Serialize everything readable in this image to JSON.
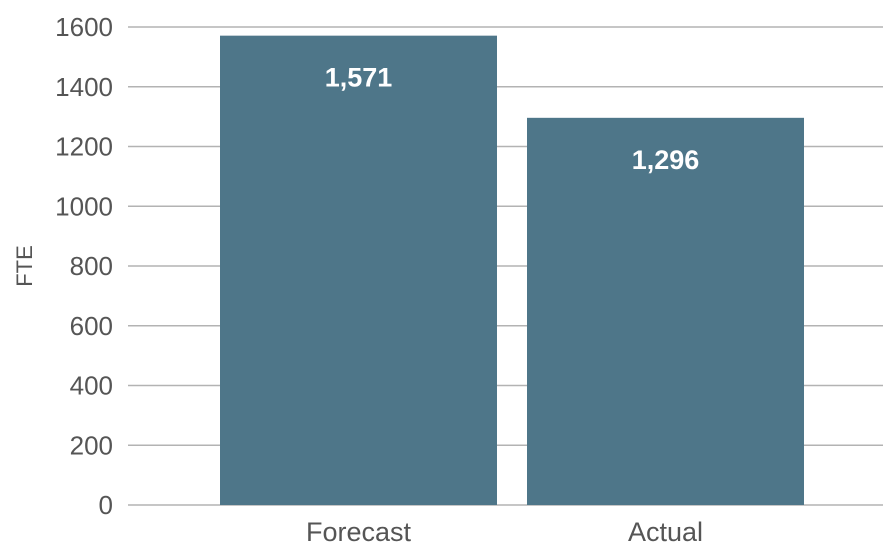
{
  "chart_data": {
    "type": "bar",
    "categories": [
      "Forecast",
      "Actual"
    ],
    "values": [
      1571,
      1296
    ],
    "data_labels": [
      "1,571",
      "1,296"
    ],
    "title": "",
    "xlabel": "",
    "ylabel": "FTE",
    "ylim": [
      0,
      1600
    ],
    "yticks": [
      0,
      200,
      400,
      600,
      800,
      1000,
      1200,
      1400,
      1600
    ],
    "grid": true,
    "legend": "none",
    "bar_color": "#4e7689"
  }
}
